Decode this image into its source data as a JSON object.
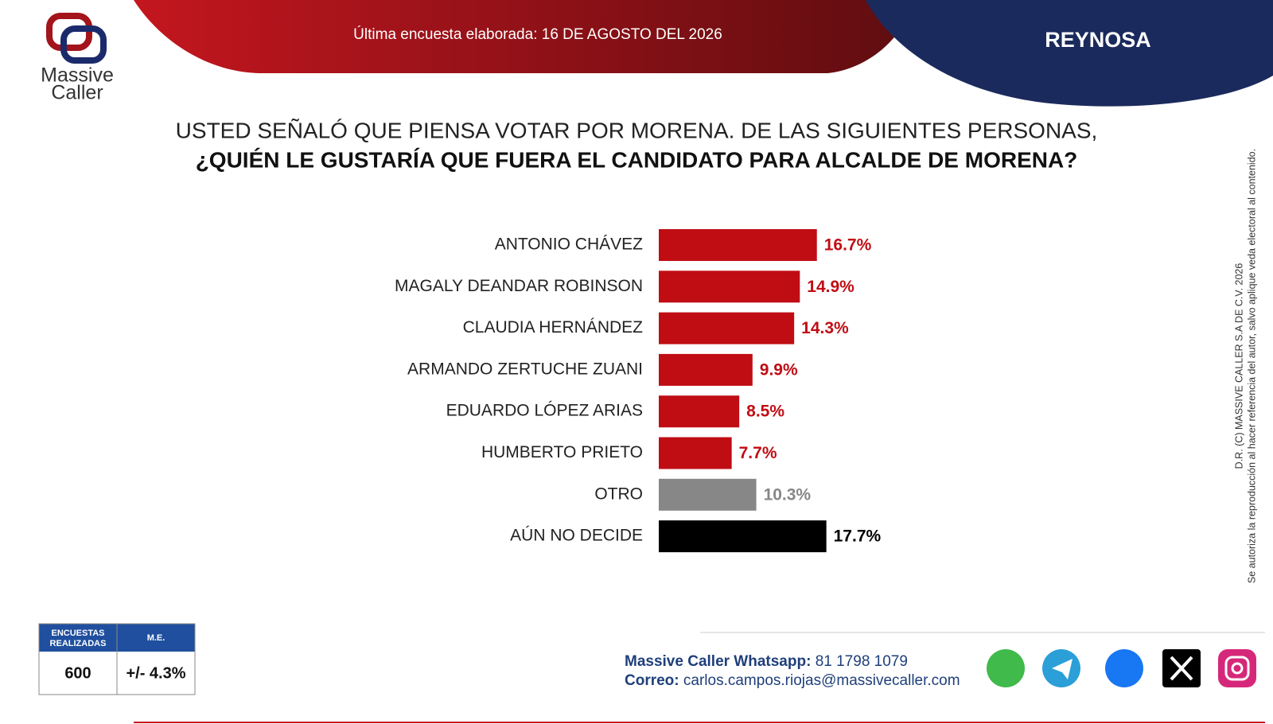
{
  "header": {
    "date_line": "Última encuesta elaborada: 16 DE AGOSTO DEL 2026",
    "region": "REYNOSA"
  },
  "logo": {
    "line1": "Massive",
    "line2": "Caller"
  },
  "chart_data": {
    "type": "bar",
    "orientation": "horizontal",
    "title": "USTED SEÑALÓ QUE PIENSA VOTAR POR MORENA. DE LAS SIGUIENTES PERSONAS,",
    "subtitle": "¿QUIÉN LE GUSTARÍA QUE FUERA EL CANDIDATO PARA ALCALDE DE MORENA?",
    "categories": [
      "ANTONIO CHÁVEZ",
      "MAGALY DEANDAR ROBINSON",
      "CLAUDIA HERNÁNDEZ",
      "ARMANDO ZERTUCHE ZUANI",
      "EDUARDO LÓPEZ ARIAS",
      "HUMBERTO PRIETO",
      "OTRO",
      "AÚN NO DECIDE"
    ],
    "values": [
      16.7,
      14.9,
      14.3,
      9.9,
      8.5,
      7.7,
      10.3,
      17.7
    ],
    "value_labels": [
      "16.7%",
      "14.9%",
      "14.3%",
      "9.9%",
      "8.5%",
      "7.7%",
      "10.3%",
      "17.7%"
    ],
    "colors": [
      "#c00d14",
      "#c00d14",
      "#c00d14",
      "#c00d14",
      "#c00d14",
      "#c00d14",
      "#878787",
      "#000000"
    ]
  },
  "copyright": {
    "line1": "D.R. (C) MASSIVE CALLER S.A DE C.V. 2026",
    "line2": "Se autoriza la reproducción al hacer referencia del autor, salvo aplique veda electoral al contenido."
  },
  "sample_table": {
    "headers": [
      "ENCUESTAS REALIZADAS",
      "M.E."
    ],
    "row": [
      "600",
      "+/- 4.3%"
    ]
  },
  "contact": {
    "whatsapp_label": "Massive Caller Whatsapp:",
    "whatsapp_number": "81 1798 1079",
    "email_label": "Correo:",
    "email": "carlos.campos.riojas@massivecaller.com"
  }
}
